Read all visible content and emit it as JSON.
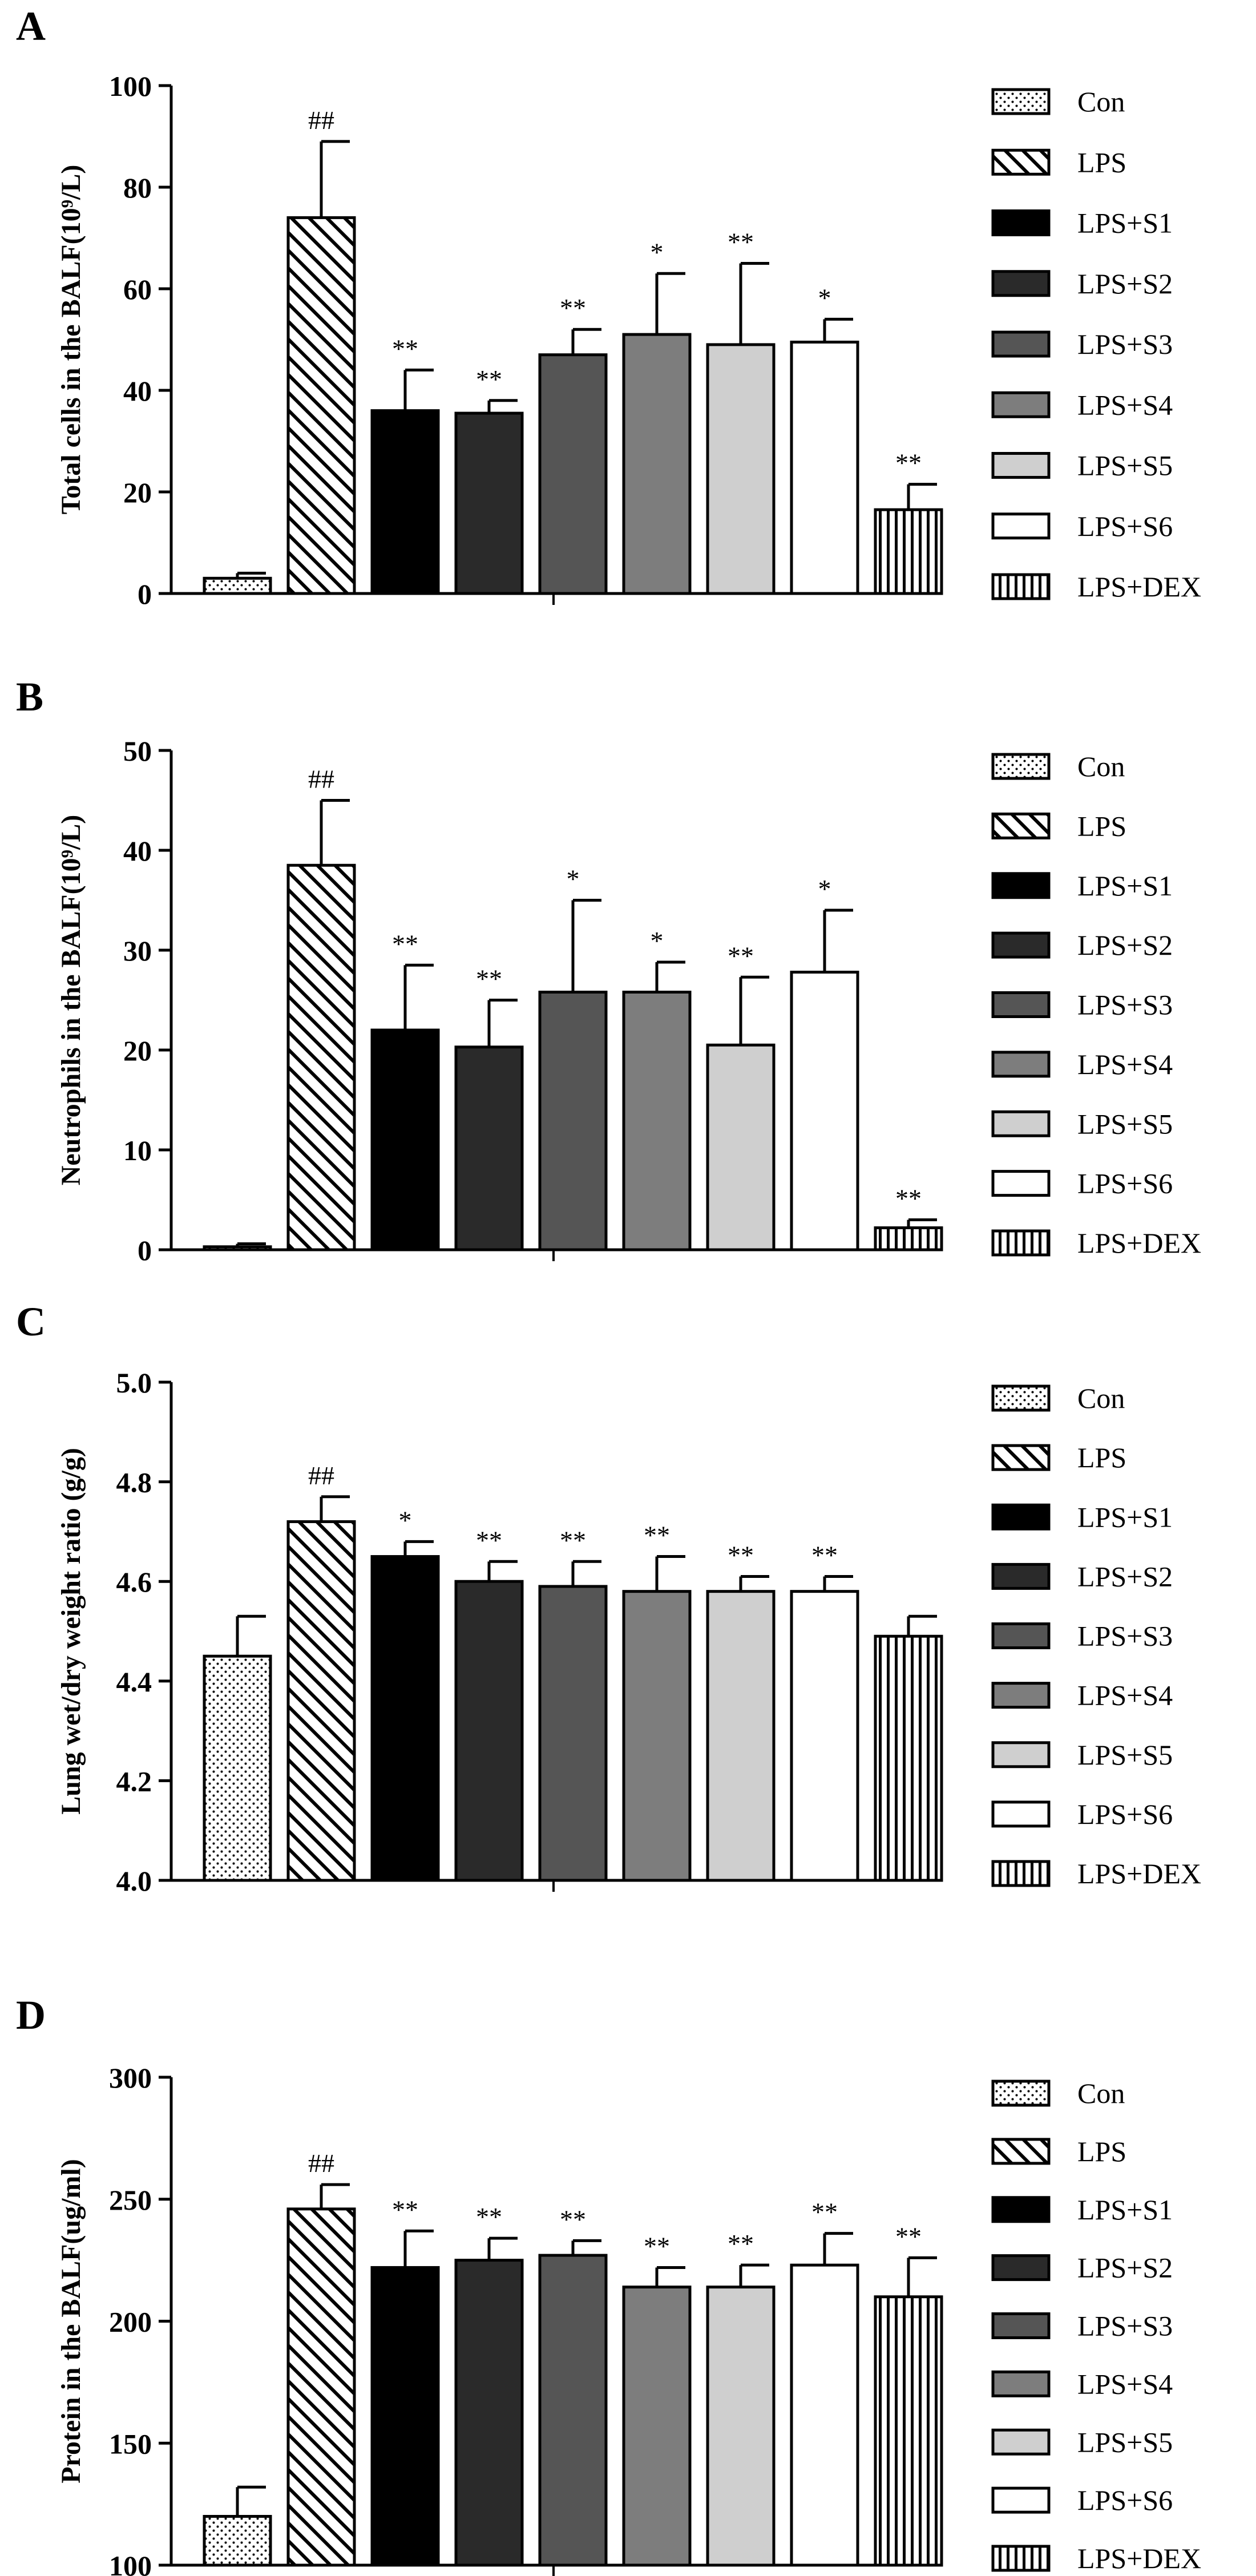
{
  "legend_labels": [
    "Con",
    "LPS",
    "LPS+S1",
    "LPS+S2",
    "LPS+S3",
    "LPS+S4",
    "LPS+S5",
    "LPS+S6",
    "LPS+DEX"
  ],
  "chart_data": [
    {
      "type": "bar",
      "panel": "A",
      "ylabel": "Total cells in the BALF(10⁹/L)",
      "ylim": [
        0,
        100
      ],
      "yticks": [
        0,
        20,
        40,
        60,
        80,
        100
      ],
      "categories": [
        "Con",
        "LPS",
        "LPS+S1",
        "LPS+S2",
        "LPS+S3",
        "LPS+S4",
        "LPS+S5",
        "LPS+S6",
        "LPS+DEX"
      ],
      "values": [
        3,
        74,
        36,
        35.5,
        47,
        51,
        49,
        49.5,
        16.5
      ],
      "errors": [
        1,
        15,
        8,
        2.5,
        5,
        12,
        16,
        4.5,
        5
      ],
      "annotations": [
        "",
        "##",
        "**",
        "**",
        "**",
        "*",
        "**",
        "*",
        "**"
      ],
      "legend": "right"
    },
    {
      "type": "bar",
      "panel": "B",
      "ylabel": "Neutrophils in the BALF(10⁹/L)",
      "ylim": [
        0,
        50
      ],
      "yticks": [
        0,
        10,
        20,
        30,
        40,
        50
      ],
      "categories": [
        "Con",
        "LPS",
        "LPS+S1",
        "LPS+S2",
        "LPS+S3",
        "LPS+S4",
        "LPS+S5",
        "LPS+S6",
        "LPS+DEX"
      ],
      "values": [
        0.3,
        38.5,
        22,
        20.3,
        25.8,
        25.8,
        20.5,
        27.8,
        2.2
      ],
      "errors": [
        0.3,
        6.5,
        6.5,
        4.7,
        9.2,
        3,
        6.8,
        6.2,
        0.8
      ],
      "annotations": [
        "",
        "##",
        "**",
        "**",
        "*",
        "*",
        "**",
        "*",
        "**"
      ],
      "legend": "right"
    },
    {
      "type": "bar",
      "panel": "C",
      "ylabel": "Lung wet/dry weight ratio (g/g)",
      "ylim": [
        4.0,
        5.0
      ],
      "yticks": [
        4.0,
        4.2,
        4.4,
        4.6,
        4.8,
        5.0
      ],
      "categories": [
        "Con",
        "LPS",
        "LPS+S1",
        "LPS+S2",
        "LPS+S3",
        "LPS+S4",
        "LPS+S5",
        "LPS+S6",
        "LPS+DEX"
      ],
      "values": [
        4.45,
        4.72,
        4.65,
        4.6,
        4.59,
        4.58,
        4.58,
        4.58,
        4.49
      ],
      "errors": [
        0.08,
        0.05,
        0.03,
        0.04,
        0.05,
        0.07,
        0.03,
        0.03,
        0.04
      ],
      "annotations": [
        "",
        "##",
        "*",
        "**",
        "**",
        "**",
        "**",
        "**",
        ""
      ],
      "legend": "right"
    },
    {
      "type": "bar",
      "panel": "D",
      "ylabel": "Protein in the BALF(ug/ml)",
      "ylim": [
        100,
        300
      ],
      "yticks": [
        100,
        150,
        200,
        250,
        300
      ],
      "categories": [
        "Con",
        "LPS",
        "LPS+S1",
        "LPS+S2",
        "LPS+S3",
        "LPS+S4",
        "LPS+S5",
        "LPS+S6",
        "LPS+DEX"
      ],
      "values": [
        120,
        246,
        222,
        225,
        227,
        214,
        214,
        223,
        210
      ],
      "errors": [
        12,
        10,
        15,
        9,
        6,
        8,
        9,
        13,
        16
      ],
      "annotations": [
        "",
        "##",
        "**",
        "**",
        "**",
        "**",
        "**",
        "**",
        "**"
      ],
      "legend": "right"
    }
  ],
  "panel_letters": [
    "A",
    "B",
    "C",
    "D"
  ]
}
